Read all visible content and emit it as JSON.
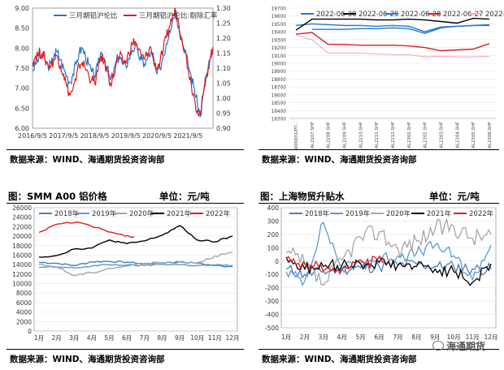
{
  "sources": {
    "p1": "数据来源：WIND、海通期货投资咨询部",
    "p2": "数据来源：WIND、海通期货投资咨询部",
    "p3": "数据来源：WIND、海通期货投资咨询部",
    "p4": "数据来源：WIND、海通期货投资咨询部"
  },
  "watermark": "海通期货",
  "chart_data": [
    {
      "type": "line",
      "title": "",
      "legend": [
        "三月期铝沪伦比",
        "三月期铝沪伦比:剔除汇率"
      ],
      "legend_placement": "top",
      "colors": [
        "#1f77d4",
        "#e6191e"
      ],
      "x_ticks": [
        "2016/9/5",
        "2017/9/5",
        "2018/9/5",
        "2019/9/5",
        "2020/9/5",
        "2021/9/5"
      ],
      "y_left": {
        "ticks": [
          "6.00",
          "6.50",
          "7.00",
          "7.50",
          "8.00",
          "8.50",
          "9.00"
        ],
        "range": [
          6.0,
          9.0
        ]
      },
      "y_right": {
        "ticks": [
          "0.90",
          "0.95",
          "1.00",
          "1.05",
          "1.10",
          "1.15",
          "1.20",
          "1.25",
          "1.30"
        ],
        "range": [
          0.9,
          1.3
        ]
      },
      "series": [
        {
          "name": "三月期铝沪伦比",
          "axis": "left",
          "values": [
            7.45,
            7.6,
            7.75,
            7.8,
            7.7,
            7.55,
            7.6,
            7.85,
            7.9,
            7.7,
            7.5,
            7.3,
            7.15,
            7.35,
            7.6,
            7.9,
            8.0,
            7.8,
            7.6,
            7.4,
            7.3,
            7.55,
            7.9,
            7.75,
            7.5,
            7.2,
            7.35,
            7.7,
            7.8,
            7.6,
            7.55,
            7.75,
            7.95,
            8.05,
            7.85,
            7.7,
            7.6,
            7.75,
            7.9,
            7.6,
            7.35,
            7.5,
            7.8,
            8.1,
            8.45,
            8.7,
            8.95,
            8.55,
            8.2,
            7.95,
            7.6,
            7.3,
            7.0,
            6.6,
            6.3,
            6.9,
            7.3,
            7.7,
            7.95
          ]
        },
        {
          "name": "三月期铝沪伦比:剔除汇率",
          "axis": "right",
          "values": [
            1.12,
            1.14,
            1.15,
            1.15,
            1.13,
            1.11,
            1.11,
            1.13,
            1.14,
            1.11,
            1.08,
            1.04,
            1.01,
            1.03,
            1.06,
            1.11,
            1.12,
            1.1,
            1.08,
            1.06,
            1.05,
            1.09,
            1.14,
            1.12,
            1.09,
            1.05,
            1.07,
            1.12,
            1.14,
            1.12,
            1.12,
            1.15,
            1.18,
            1.19,
            1.16,
            1.14,
            1.13,
            1.15,
            1.17,
            1.13,
            1.1,
            1.12,
            1.16,
            1.2,
            1.24,
            1.27,
            1.29,
            1.25,
            1.2,
            1.16,
            1.1,
            1.05,
            1.0,
            0.96,
            0.95,
            1.02,
            1.08,
            1.13,
            1.17
          ]
        }
      ]
    },
    {
      "type": "line",
      "title": "",
      "legend": [
        "2022-06-30",
        "2022-06-29",
        "2022-06-28",
        "2022-06-27",
        "2022-06-24"
      ],
      "legend_placement": "top",
      "colors": [
        "#1f77d4",
        "#000000",
        "#1f77d4",
        "#e6191e",
        "#f4a9b8"
      ],
      "categories": [
        "W00031/PT...",
        "AL2207.SHF",
        "AL2208.SHF",
        "AL2209.SHF",
        "AL2210.SHF",
        "AL2211.SHF",
        "AL2212.SHF",
        "AL2301.SHF",
        "AL2302.SHF",
        "AL2303.SHF",
        "AL2304.SHF",
        "AL2305.SHF",
        "AL2306.SHF"
      ],
      "y_ticks": [
        "18300",
        "18400",
        "18500",
        "18600",
        "18700",
        "18800",
        "18900",
        "19000",
        "19100",
        "19200",
        "19300",
        "19400",
        "19500",
        "19600",
        "19700"
      ],
      "ylim": [
        18300,
        19700
      ],
      "series": [
        {
          "name": "2022-06-30",
          "values": [
            19480,
            19500,
            19490,
            19480,
            19480,
            19470,
            19480,
            19470,
            19400,
            19460,
            19470,
            19480,
            19480
          ]
        },
        {
          "name": "2022-06-29",
          "values": [
            19420,
            19560,
            19560,
            19560,
            19560,
            19550,
            19550,
            19560,
            19550,
            19530,
            19510,
            19570,
            19560
          ]
        },
        {
          "name": "2022-06-28",
          "values": [
            null,
            19430,
            19430,
            19430,
            19440,
            19440,
            19450,
            19440,
            19380,
            19450,
            19470,
            19480,
            19490
          ]
        },
        {
          "name": "2022-06-27",
          "values": [
            19370,
            19390,
            19240,
            19240,
            19230,
            19230,
            19230,
            19220,
            19200,
            19160,
            19170,
            19180,
            19250
          ]
        },
        {
          "name": "2022-06-24",
          "values": [
            19360,
            19300,
            19130,
            19130,
            19130,
            19120,
            19110,
            19110,
            19080,
            19090,
            19080,
            19080,
            19090
          ]
        }
      ]
    },
    {
      "type": "line",
      "title": "图：SMM A00 铝价格",
      "unit": "单位：元/吨",
      "legend": [
        "2018年",
        "2019年",
        "2020年",
        "2021年",
        "2022年"
      ],
      "legend_placement": "top",
      "colors": [
        "#4a7fb8",
        "#5b9bd5",
        "#a6a6a6",
        "#000000",
        "#e6191e"
      ],
      "categories": [
        "1月",
        "2月",
        "3月",
        "4月",
        "5月",
        "6月",
        "7月",
        "8月",
        "9月",
        "10月",
        "11月",
        "12月"
      ],
      "y_ticks": [
        "0",
        "2000",
        "4000",
        "6000",
        "8000",
        "10000",
        "12000",
        "14000",
        "16000",
        "18000",
        "20000",
        "22000",
        "24000",
        "26000"
      ],
      "ylim": [
        0,
        26000
      ],
      "series": [
        {
          "name": "2018年",
          "values": [
            14500,
            14300,
            13800,
            14600,
            14700,
            14500,
            14200,
            14400,
            14600,
            14300,
            13800,
            13600
          ]
        },
        {
          "name": "2019年",
          "values": [
            13400,
            13500,
            13300,
            13700,
            14000,
            13900,
            13800,
            14100,
            14000,
            13800,
            13900,
            13800
          ]
        },
        {
          "name": "2020年",
          "values": [
            14000,
            13500,
            11700,
            12300,
            13200,
            13700,
            14300,
            14400,
            14600,
            14400,
            15800,
            16500
          ]
        },
        {
          "name": "2021年",
          "values": [
            15600,
            15900,
            17300,
            17500,
            19200,
            18400,
            19000,
            20200,
            22200,
            19200,
            18800,
            20000
          ]
        },
        {
          "name": "2022年",
          "values": [
            20800,
            22600,
            23000,
            21800,
            20600,
            19800,
            null,
            null,
            null,
            null,
            null,
            null
          ]
        }
      ]
    },
    {
      "type": "line",
      "title": "图：上海物贸升贴水",
      "unit": "单位：元/吨",
      "legend": [
        "2018年",
        "2019年",
        "2020年",
        "2021年",
        "2022年"
      ],
      "legend_placement": "top",
      "colors": [
        "#4a7fb8",
        "#5b9bd5",
        "#a6a6a6",
        "#000000",
        "#e6191e"
      ],
      "categories": [
        "1月",
        "2月",
        "3月",
        "4月",
        "5月",
        "6月",
        "7月",
        "8月",
        "9月",
        "10月",
        "11月",
        "12月"
      ],
      "y_ticks": [
        "-500",
        "-400",
        "-300",
        "-200",
        "-100",
        "0",
        "100",
        "200",
        "300",
        "400"
      ],
      "ylim": [
        -500,
        400
      ],
      "series": [
        {
          "name": "2018年",
          "values": [
            -60,
            -100,
            -80,
            -60,
            -50,
            -40,
            -30,
            -20,
            -40,
            -40,
            -60,
            -60
          ]
        },
        {
          "name": "2019年",
          "values": [
            -80,
            -150,
            290,
            -60,
            -10,
            20,
            40,
            60,
            120,
            40,
            -140,
            120
          ]
        },
        {
          "name": "2020年",
          "values": [
            60,
            -20,
            -180,
            10,
            180,
            220,
            90,
            150,
            240,
            260,
            170,
            200
          ]
        },
        {
          "name": "2021年",
          "values": [
            30,
            -60,
            -40,
            -30,
            -20,
            -10,
            -30,
            -40,
            -60,
            -80,
            -160,
            -20
          ]
        },
        {
          "name": "2022年",
          "values": [
            20,
            -30,
            -60,
            -40,
            -20,
            10,
            null,
            null,
            null,
            null,
            null,
            null
          ]
        }
      ]
    }
  ]
}
